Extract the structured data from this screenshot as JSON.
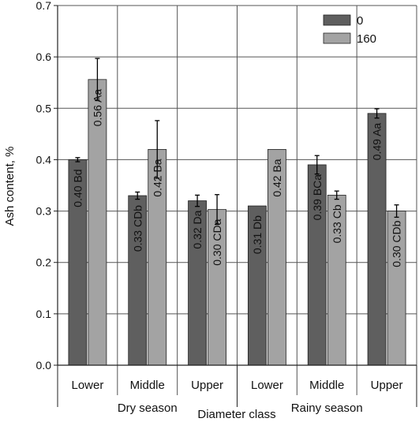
{
  "chart_data": {
    "type": "bar",
    "xlabel": "Diameter class",
    "ylabel": "Ash content, %",
    "ylim": [
      0,
      0.7
    ],
    "yticks": [
      "0.0",
      "0.1",
      "0.2",
      "0.3",
      "0.4",
      "0.5",
      "0.6",
      "0.7"
    ],
    "grid": true,
    "legend_position": "top-right",
    "groups": [
      {
        "name": "Dry season",
        "categories": [
          "Lower",
          "Middle",
          "Upper"
        ]
      },
      {
        "name": "Rainy season",
        "categories": [
          "Lower",
          "Middle",
          "Upper"
        ]
      }
    ],
    "categories": [
      "Lower",
      "Middle",
      "Upper",
      "Lower",
      "Middle",
      "Upper"
    ],
    "series": [
      {
        "name": "0",
        "color": "#5f5f5f",
        "values": [
          0.4,
          0.33,
          0.32,
          0.31,
          0.39,
          0.49
        ],
        "errors": [
          0.004,
          0.007,
          0.011,
          0,
          0.018,
          0.009
        ],
        "labels": [
          "0.40 Bd",
          "0.33 CDb",
          "0.32 Da",
          "0.31 Db",
          "0.39 BCa",
          "0.49 Aa"
        ]
      },
      {
        "name": "160",
        "color": "#a3a3a3",
        "values": [
          0.556,
          0.42,
          0.303,
          0.42,
          0.331,
          0.3
        ],
        "errors": [
          0.041,
          0.056,
          0.029,
          0,
          0.008,
          0.012
        ],
        "labels": [
          "0.56 Aa",
          "0.42 Ba",
          "0.30 CDa",
          "0.42 Ba",
          "0.33 Cb",
          "0.30 CDb"
        ]
      }
    ]
  }
}
